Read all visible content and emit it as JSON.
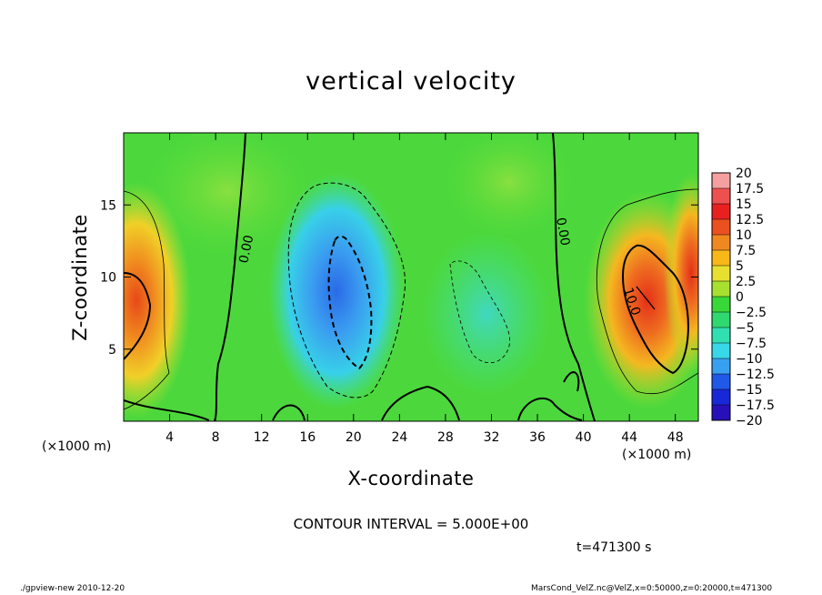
{
  "chart_data": {
    "type": "heatmap",
    "title": "vertical velocity",
    "xlabel": "X-coordinate",
    "ylabel": "Z-coordinate",
    "x_unit_label": "(×1000 m)",
    "xlim": [
      0,
      50
    ],
    "ylim": [
      0,
      20
    ],
    "x_ticks": [
      4,
      8,
      12,
      16,
      20,
      24,
      28,
      32,
      36,
      40,
      44,
      48
    ],
    "y_ticks": [
      5,
      10,
      15
    ],
    "colorbar": {
      "levels": [
        "20",
        "17.5",
        "15",
        "12.5",
        "10",
        "7.5",
        "5",
        "2.5",
        "0",
        "−2.5",
        "−5",
        "−7.5",
        "−10",
        "−12.5",
        "−15",
        "−17.5",
        "−20"
      ],
      "colors": [
        "#f4a0a0",
        "#ee5050",
        "#e82020",
        "#ec5020",
        "#f08820",
        "#f8b818",
        "#e8e030",
        "#a8e030",
        "#38d838",
        "#30d870",
        "#30e0b0",
        "#38d8e8",
        "#38a0f0",
        "#2058e8",
        "#1828d8",
        "#2810b8",
        "#6018a8"
      ]
    },
    "contour_labels": [
      "0.00",
      "0.00",
      "10.0"
    ],
    "contour_interval": "CONTOUR INTERVAL = 5.000E+00",
    "time": "t=471300 s",
    "fields": {
      "updraft_left": {
        "x": 0.5,
        "z": 7.5,
        "w_max": 12.5
      },
      "updraft_right": {
        "x": 46,
        "z": 8,
        "w_max": 12.5
      },
      "downdraft_center": {
        "x": 20,
        "z": 7.5,
        "w_min": -12.5
      }
    }
  },
  "footer": {
    "left": "./gpview-new  2010-12-20",
    "right": "MarsCond_VelZ.nc@VelZ,x=0:50000,z=0:20000,t=471300"
  }
}
